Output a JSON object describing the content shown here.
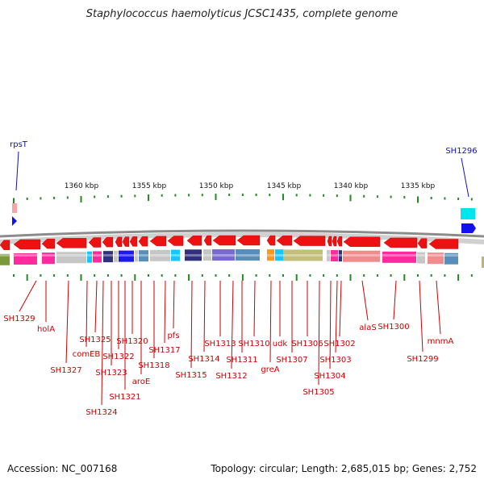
{
  "title": "Staphylococcus haemolyticus JCSC1435, complete genome",
  "accession": "Accession: NC_007168",
  "summary": "Topology: circular; Length: 2,685,015 bp; Genes: 2,752",
  "colors": {
    "backbone": "#8c8c8c",
    "arrow_red": "#ee1111",
    "label_red": "#cc0000",
    "label_blue": "#1111aa",
    "tick_green": "#228b22"
  },
  "kbp_labels": [
    "1360 kbp",
    "1355 kbp",
    "1350 kbp",
    "1345 kbp",
    "1340 kbp",
    "1335 kbp"
  ],
  "top_labels": [
    "rpsT",
    "SH1296"
  ],
  "gene_labels": [
    "SH1329",
    "holA",
    "SH1327",
    "comEB",
    "SH1325",
    "SH1324",
    "SH1323",
    "SH1322",
    "SH1321",
    "SH1320",
    "aroE",
    "SH1318",
    "SH1317",
    "pfs",
    "SH1315",
    "SH1314",
    "SH1313",
    "SH1312",
    "SH1311",
    "SH1310",
    "greA",
    "udk",
    "SH1307",
    "SH1306",
    "SH1305",
    "SH1304",
    "SH1303",
    "SH1302",
    "alaS",
    "SH1300",
    "SH1299",
    "mnmA"
  ]
}
